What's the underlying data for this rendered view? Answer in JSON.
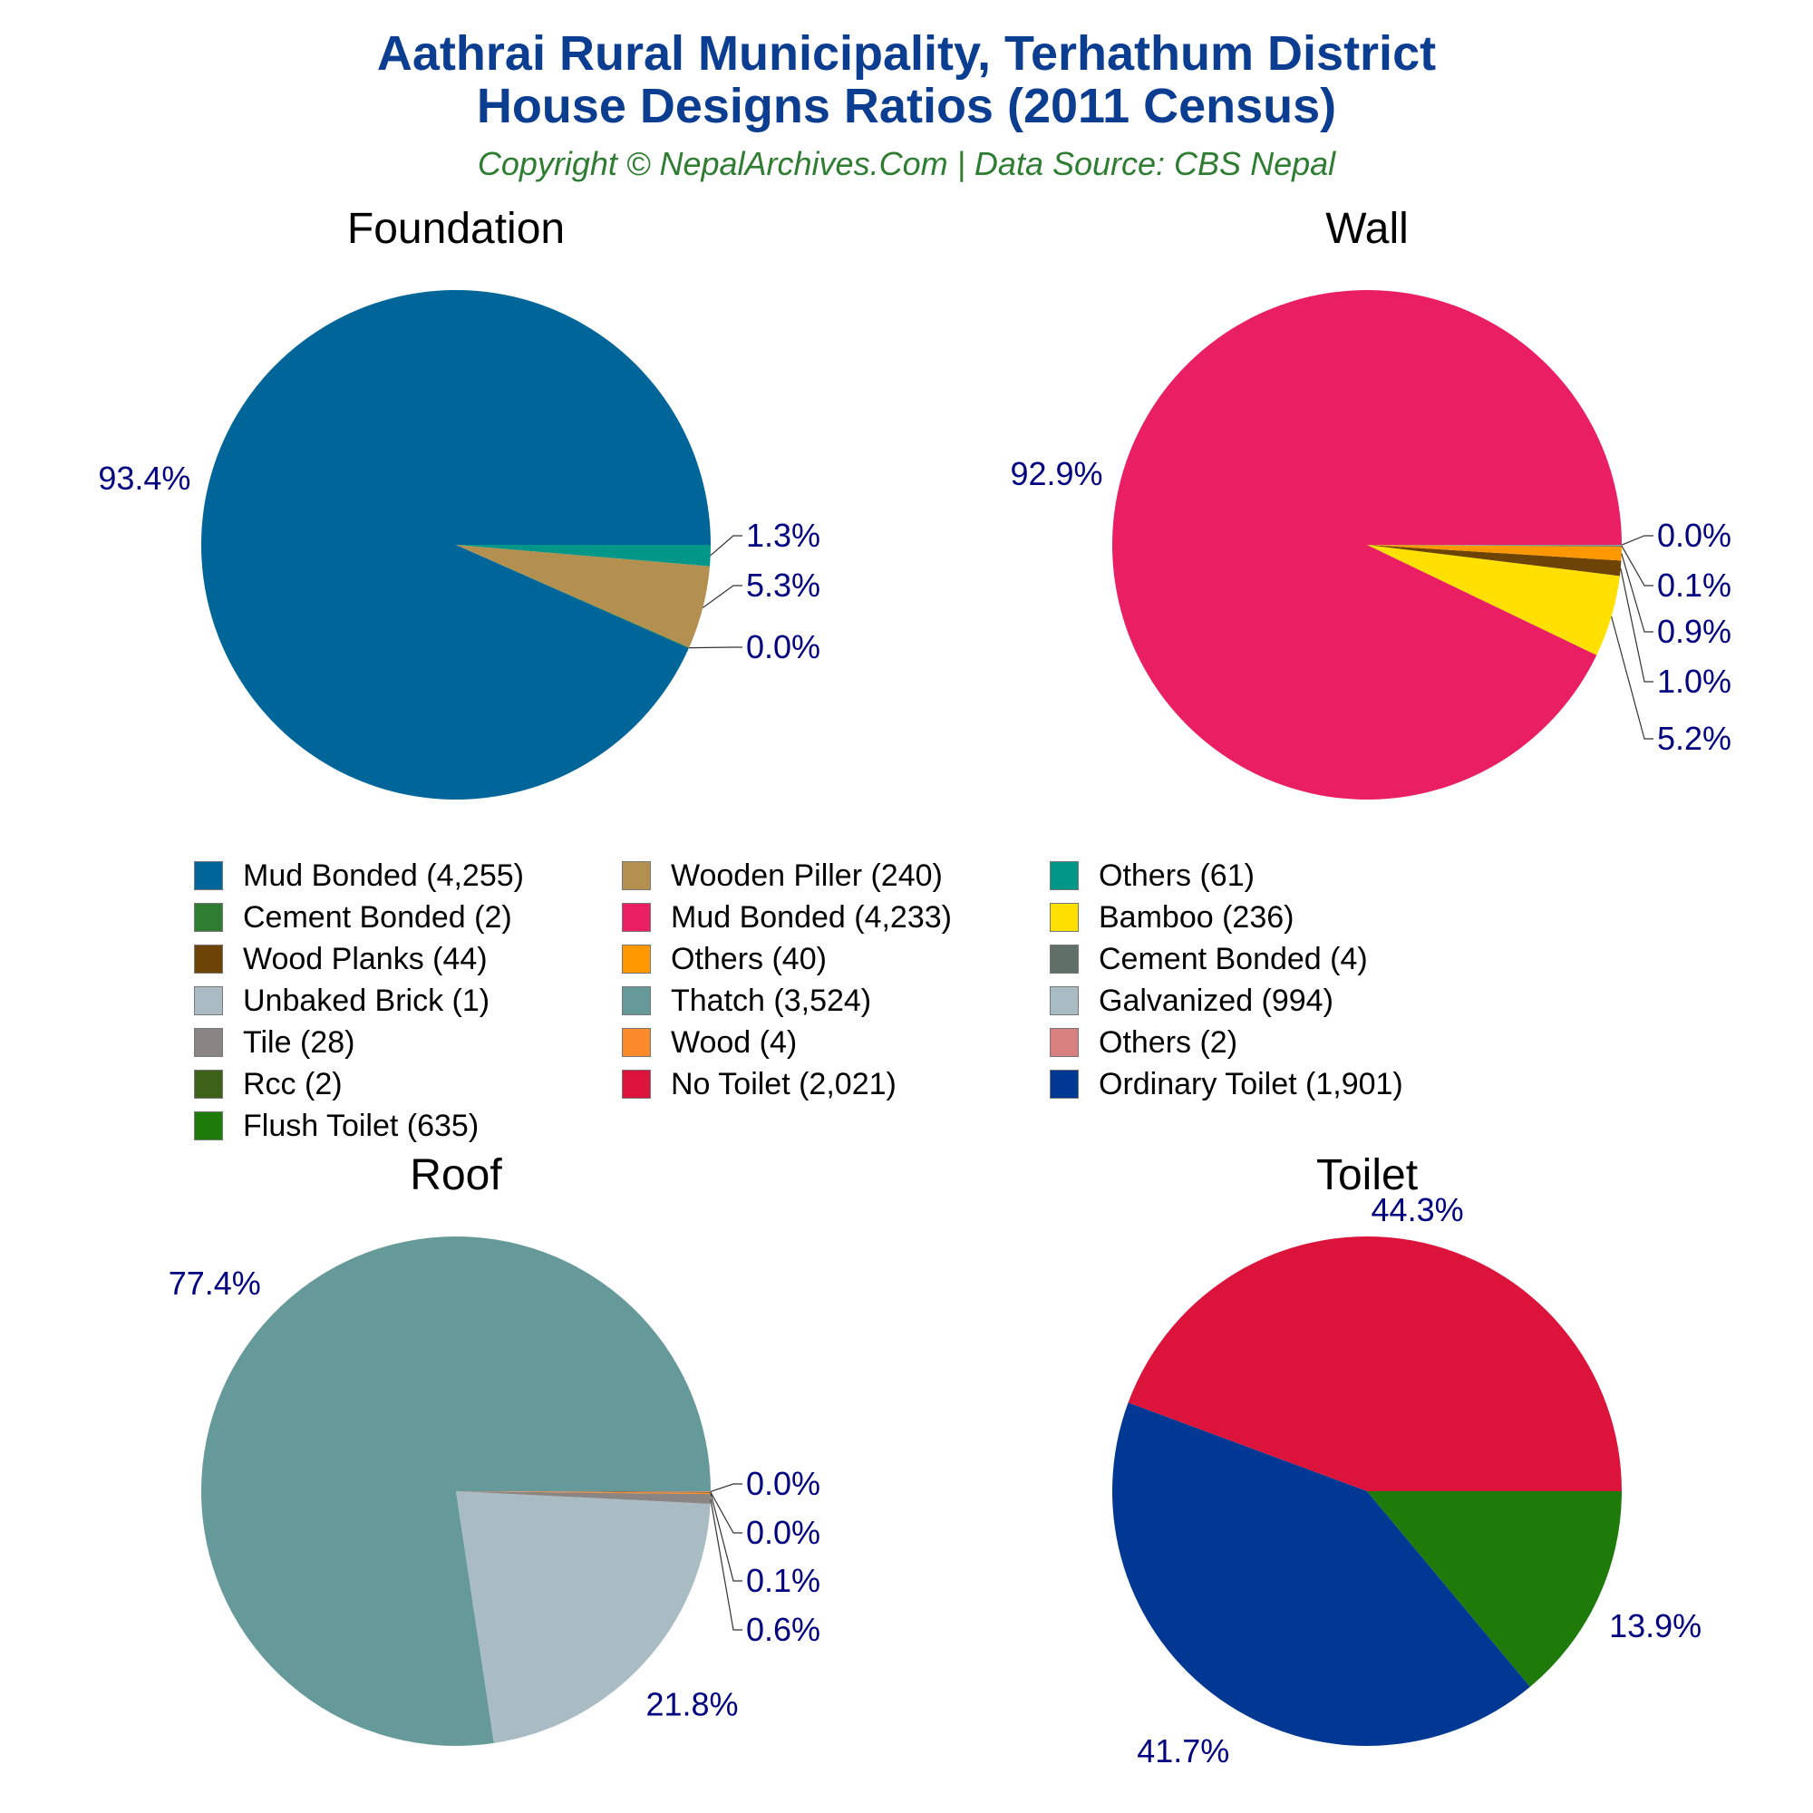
{
  "title_line1": "Aathrai Rural Municipality, Terhathum District",
  "title_line2": "House Designs Ratios (2011 Census)",
  "subtitle": "Copyright © NepalArchives.Com | Data Source: CBS Nepal",
  "chart_data": [
    {
      "type": "pie",
      "title": "Foundation",
      "labels": [
        "Mud Bonded",
        "Cement Bonded",
        "Wooden Piller",
        "Others"
      ],
      "values": [
        4255,
        2,
        240,
        61
      ],
      "percent_labels": [
        "93.4%",
        "0.0%",
        "5.3%",
        "1.3%"
      ],
      "colors": [
        "#006699",
        "#2e7d32",
        "#b38f50",
        "#009688"
      ]
    },
    {
      "type": "pie",
      "title": "Wall",
      "labels": [
        "Mud Bonded",
        "Bamboo",
        "Wood Planks",
        "Others",
        "Cement Bonded",
        "Unbaked Brick"
      ],
      "values": [
        4233,
        236,
        44,
        40,
        4,
        1
      ],
      "percent_labels": [
        "92.9%",
        "5.2%",
        "1.0%",
        "0.9%",
        "0.1%",
        "0.0%"
      ],
      "colors": [
        "#e91e63",
        "#ffe000",
        "#6d4306",
        "#ff9800",
        "#607068",
        "#aabbc3"
      ]
    },
    {
      "type": "pie",
      "title": "Roof",
      "labels": [
        "Thatch",
        "Galvanized",
        "Tile",
        "Wood",
        "Rcc",
        "Others"
      ],
      "values": [
        3524,
        994,
        28,
        4,
        2,
        2
      ],
      "percent_labels": [
        "77.4%",
        "21.8%",
        "0.6%",
        "0.1%",
        "0.0%",
        "0.0%"
      ],
      "colors": [
        "#669999",
        "#a9bcc4",
        "#8a8482",
        "#fb8a2a",
        "#3d6118",
        "#d98080"
      ]
    },
    {
      "type": "pie",
      "title": "Toilet",
      "labels": [
        "No Toilet",
        "Ordinary Toilet",
        "Flush Toilet"
      ],
      "values": [
        2021,
        1901,
        635
      ],
      "percent_labels": [
        "44.3%",
        "41.7%",
        "13.9%"
      ],
      "colors": [
        "#dc143c",
        "#003893",
        "#1e7b0a"
      ]
    }
  ],
  "legend": [
    {
      "label": "Mud Bonded (4,255)",
      "color": "#006699"
    },
    {
      "label": "Wooden Piller (240)",
      "color": "#b38f50"
    },
    {
      "label": "Others (61)",
      "color": "#009688"
    },
    {
      "label": "Cement Bonded (2)",
      "color": "#2e7d32"
    },
    {
      "label": "Mud Bonded (4,233)",
      "color": "#e91e63"
    },
    {
      "label": "Bamboo (236)",
      "color": "#ffe000"
    },
    {
      "label": "Wood Planks (44)",
      "color": "#6d4306"
    },
    {
      "label": "Others (40)",
      "color": "#ff9800"
    },
    {
      "label": "Cement Bonded (4)",
      "color": "#607068"
    },
    {
      "label": "Unbaked Brick (1)",
      "color": "#aabbc3"
    },
    {
      "label": "Thatch (3,524)",
      "color": "#669999"
    },
    {
      "label": "Galvanized (994)",
      "color": "#a9bcc4"
    },
    {
      "label": "Tile (28)",
      "color": "#8a8482"
    },
    {
      "label": "Wood (4)",
      "color": "#fb8a2a"
    },
    {
      "label": "Others (2)",
      "color": "#d98080"
    },
    {
      "label": "Rcc (2)",
      "color": "#3d6118"
    },
    {
      "label": "No Toilet (2,021)",
      "color": "#dc143c"
    },
    {
      "label": "Ordinary Toilet (1,901)",
      "color": "#003893"
    },
    {
      "label": "Flush Toilet (635)",
      "color": "#1e7b0a"
    }
  ],
  "label_color": "#000080"
}
